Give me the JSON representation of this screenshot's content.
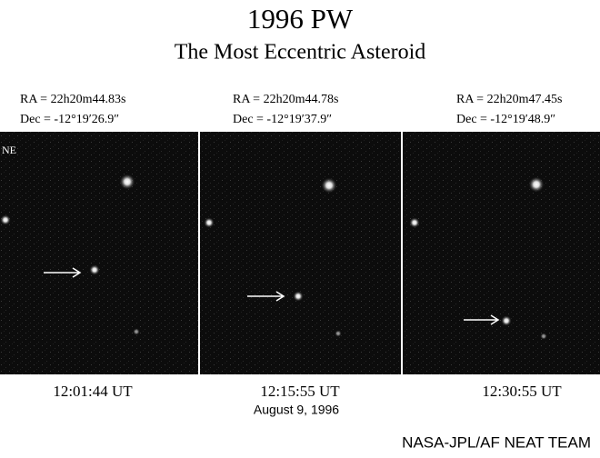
{
  "header": {
    "title": "1996 PW",
    "subtitle": "The Most Eccentric Asteroid"
  },
  "panels": [
    {
      "ra": "RA = 22h20m44.83s",
      "dec": "Dec = -12°19′26.9″",
      "time": "12:01:44 UT",
      "direction": "NE"
    },
    {
      "ra": "RA = 22h20m44.78s",
      "dec": "Dec = -12°19′37.9″",
      "time": "12:15:55 UT"
    },
    {
      "ra": "RA = 22h20m47.45s",
      "dec": "Dec = -12°19′48.9″",
      "time": "12:30:55 UT"
    }
  ],
  "date": "August 9, 1996",
  "credit": "NASA-JPL/AF NEAT TEAM"
}
